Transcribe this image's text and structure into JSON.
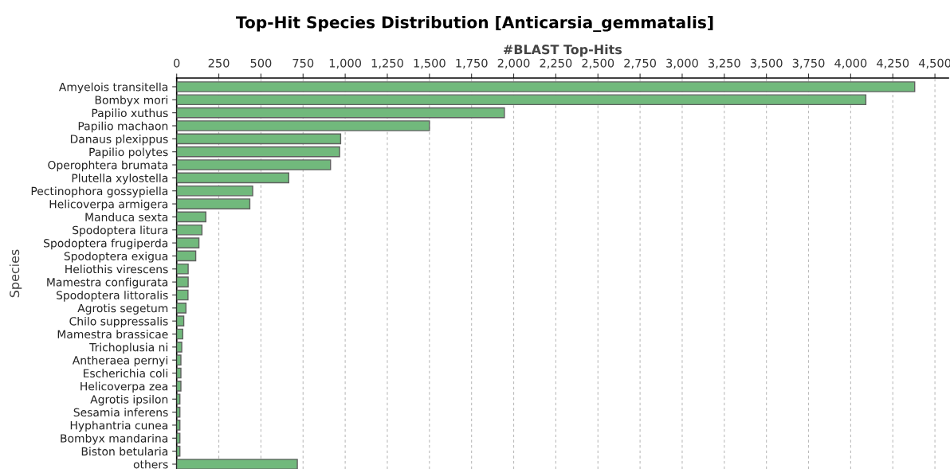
{
  "chart_data": {
    "type": "bar",
    "orientation": "horizontal",
    "title": "Top-Hit Species Distribution [Anticarsia_gemmatalis]",
    "xlabel": "#BLAST Top-Hits",
    "ylabel": "Species",
    "categories": [
      "Amyelois transitella",
      "Bombyx mori",
      "Papilio xuthus",
      "Papilio machaon",
      "Danaus plexippus",
      "Papilio polytes",
      "Operophtera brumata",
      "Plutella xylostella",
      "Pectinophora gossypiella",
      "Helicoverpa armigera",
      "Manduca sexta",
      "Spodoptera litura",
      "Spodoptera frugiperda",
      "Spodoptera exigua",
      "Heliothis virescens",
      "Mamestra configurata",
      "Spodoptera littoralis",
      "Agrotis segetum",
      "Chilo suppressalis",
      "Mamestra brassicae",
      "Trichoplusia ni",
      "Antheraea pernyi",
      "Escherichia coli",
      "Helicoverpa zea",
      "Agrotis ipsilon",
      "Sesamia inferens",
      "Hyphantria cunea",
      "Bombyx mandarina",
      "Biston betularia",
      "others"
    ],
    "values": [
      4380,
      4090,
      1945,
      1500,
      973,
      967,
      913,
      665,
      451,
      434,
      173,
      150,
      132,
      113,
      68,
      68,
      67,
      55,
      42,
      36,
      30,
      25,
      25,
      25,
      19,
      19,
      19,
      19,
      19,
      716
    ],
    "color": "#71b97c",
    "xlim": [
      0,
      4580
    ],
    "xticks": [
      {
        "value": 0,
        "label": "0"
      },
      {
        "value": 250,
        "label": "250"
      },
      {
        "value": 500,
        "label": "500"
      },
      {
        "value": 750,
        "label": "750"
      },
      {
        "value": 1000,
        "label": "1,000"
      },
      {
        "value": 1250,
        "label": "1,250"
      },
      {
        "value": 1500,
        "label": "1,500"
      },
      {
        "value": 1750,
        "label": "1,750"
      },
      {
        "value": 2000,
        "label": "2,000"
      },
      {
        "value": 2250,
        "label": "2,250"
      },
      {
        "value": 2500,
        "label": "2,500"
      },
      {
        "value": 2750,
        "label": "2,750"
      },
      {
        "value": 3000,
        "label": "3,000"
      },
      {
        "value": 3250,
        "label": "3,250"
      },
      {
        "value": 3500,
        "label": "3,500"
      },
      {
        "value": 3750,
        "label": "3,750"
      },
      {
        "value": 4000,
        "label": "4,000"
      },
      {
        "value": 4250,
        "label": "4,250"
      },
      {
        "value": 4500,
        "label": "4,500"
      }
    ],
    "grid": "x",
    "legend": false
  }
}
